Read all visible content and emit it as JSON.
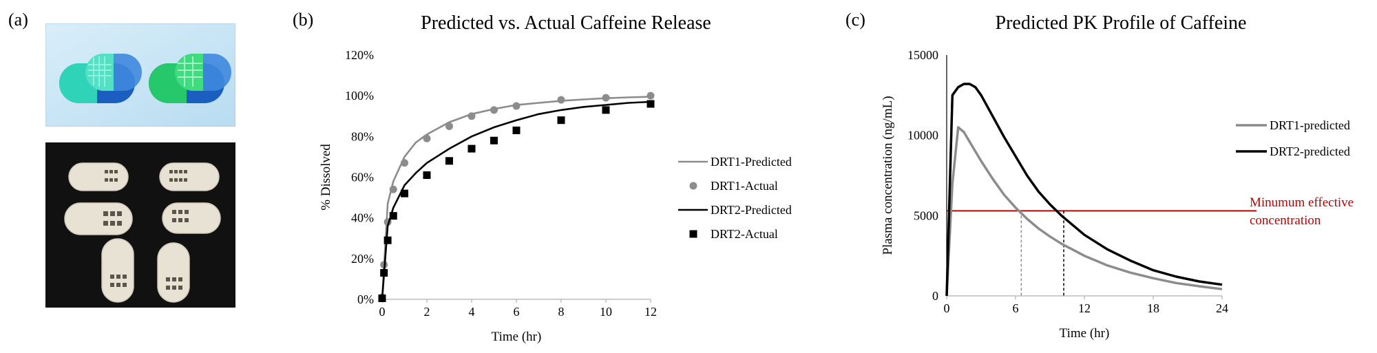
{
  "panel_labels": [
    "(a)",
    "(b)",
    "(c)"
  ],
  "colors": {
    "grey_series": "#8c8c8c",
    "black_series": "#000000",
    "mec_line": "#c00000",
    "render_bg": "#c9e6f7",
    "photo_bg": "#111111"
  },
  "chart_data": [
    {
      "type": "line",
      "title": "Predicted vs. Actual Caffeine Release",
      "xlabel": "Time (hr)",
      "ylabel": "% Dissolved",
      "xlim": [
        0,
        12
      ],
      "ylim": [
        0,
        1.2
      ],
      "x_ticks": [
        "0",
        "2",
        "4",
        "6",
        "8",
        "10",
        "12"
      ],
      "y_ticks": [
        "0%",
        "20%",
        "40%",
        "60%",
        "80%",
        "100%",
        "120%"
      ],
      "grid": false,
      "legend_position": "right",
      "series": [
        {
          "name": "DRT1-Predicted",
          "style": "line",
          "color": "#8c8c8c",
          "x": [
            0,
            0.25,
            0.5,
            1,
            1.5,
            2,
            3,
            4,
            5,
            6,
            7,
            8,
            9,
            10,
            11,
            12
          ],
          "y": [
            0,
            0.47,
            0.58,
            0.7,
            0.77,
            0.81,
            0.87,
            0.91,
            0.935,
            0.955,
            0.965,
            0.975,
            0.982,
            0.988,
            0.992,
            0.995
          ]
        },
        {
          "name": "DRT1-Actual",
          "style": "marker-circle",
          "color": "#8c8c8c",
          "x": [
            0,
            0.083,
            0.25,
            0.5,
            1,
            2,
            3,
            4,
            5,
            6,
            8,
            10,
            12
          ],
          "y": [
            0.01,
            0.17,
            0.38,
            0.54,
            0.67,
            0.79,
            0.85,
            0.9,
            0.93,
            0.95,
            0.98,
            0.99,
            1.0
          ]
        },
        {
          "name": "DRT2-Predicted",
          "style": "line",
          "color": "#000000",
          "x": [
            0,
            0.25,
            0.5,
            1,
            1.5,
            2,
            3,
            4,
            5,
            6,
            7,
            8,
            9,
            10,
            11,
            12
          ],
          "y": [
            0,
            0.36,
            0.45,
            0.56,
            0.62,
            0.67,
            0.74,
            0.8,
            0.845,
            0.88,
            0.91,
            0.93,
            0.945,
            0.955,
            0.965,
            0.97
          ]
        },
        {
          "name": "DRT2-Actual",
          "style": "marker-square",
          "color": "#000000",
          "x": [
            0,
            0.083,
            0.25,
            0.5,
            1,
            2,
            3,
            4,
            5,
            6,
            8,
            10,
            12
          ],
          "y": [
            0.005,
            0.13,
            0.29,
            0.41,
            0.52,
            0.61,
            0.68,
            0.74,
            0.78,
            0.83,
            0.88,
            0.93,
            0.96
          ]
        }
      ]
    },
    {
      "type": "line",
      "title": "Predicted PK Profile of Caffeine",
      "xlabel": "Time (hr)",
      "ylabel": "Plasma concentration (ng/mL)",
      "xlim": [
        0,
        24
      ],
      "ylim": [
        0,
        15000
      ],
      "x_ticks": [
        "0",
        "6",
        "12",
        "18",
        "24"
      ],
      "y_ticks": [
        "0",
        "5000",
        "10000",
        "15000"
      ],
      "grid": false,
      "legend_position": "right",
      "series": [
        {
          "name": "DRT1-predicted",
          "color": "#8c8c8c",
          "x": [
            0,
            0.5,
            1,
            1.5,
            2,
            3,
            4,
            5,
            6,
            7,
            8,
            9,
            10,
            12,
            14,
            16,
            18,
            20,
            22,
            24
          ],
          "y": [
            0,
            7000,
            10500,
            10200,
            9600,
            8400,
            7300,
            6300,
            5500,
            4800,
            4200,
            3700,
            3250,
            2500,
            1900,
            1450,
            1100,
            800,
            600,
            420
          ]
        },
        {
          "name": "DRT2-predicted",
          "color": "#000000",
          "x": [
            0,
            0.5,
            1,
            1.5,
            2,
            2.5,
            3,
            4,
            5,
            6,
            7,
            8,
            9,
            10,
            12,
            14,
            16,
            18,
            20,
            22,
            24
          ],
          "y": [
            0,
            12500,
            13000,
            13200,
            13200,
            13000,
            12500,
            11200,
            9900,
            8700,
            7500,
            6500,
            5700,
            5000,
            3800,
            2900,
            2200,
            1600,
            1200,
            900,
            700
          ]
        }
      ],
      "reference_line": {
        "label": "Minumum effective concentration",
        "label_lines": [
          "Minumum effective",
          "concentration"
        ],
        "y": 5300,
        "color": "#c00000"
      },
      "crossing_markers": [
        {
          "series": "DRT1-predicted",
          "x": 6.5,
          "y": 5300
        },
        {
          "series": "DRT2-predicted",
          "x": 10.2,
          "y": 5300
        }
      ]
    }
  ]
}
